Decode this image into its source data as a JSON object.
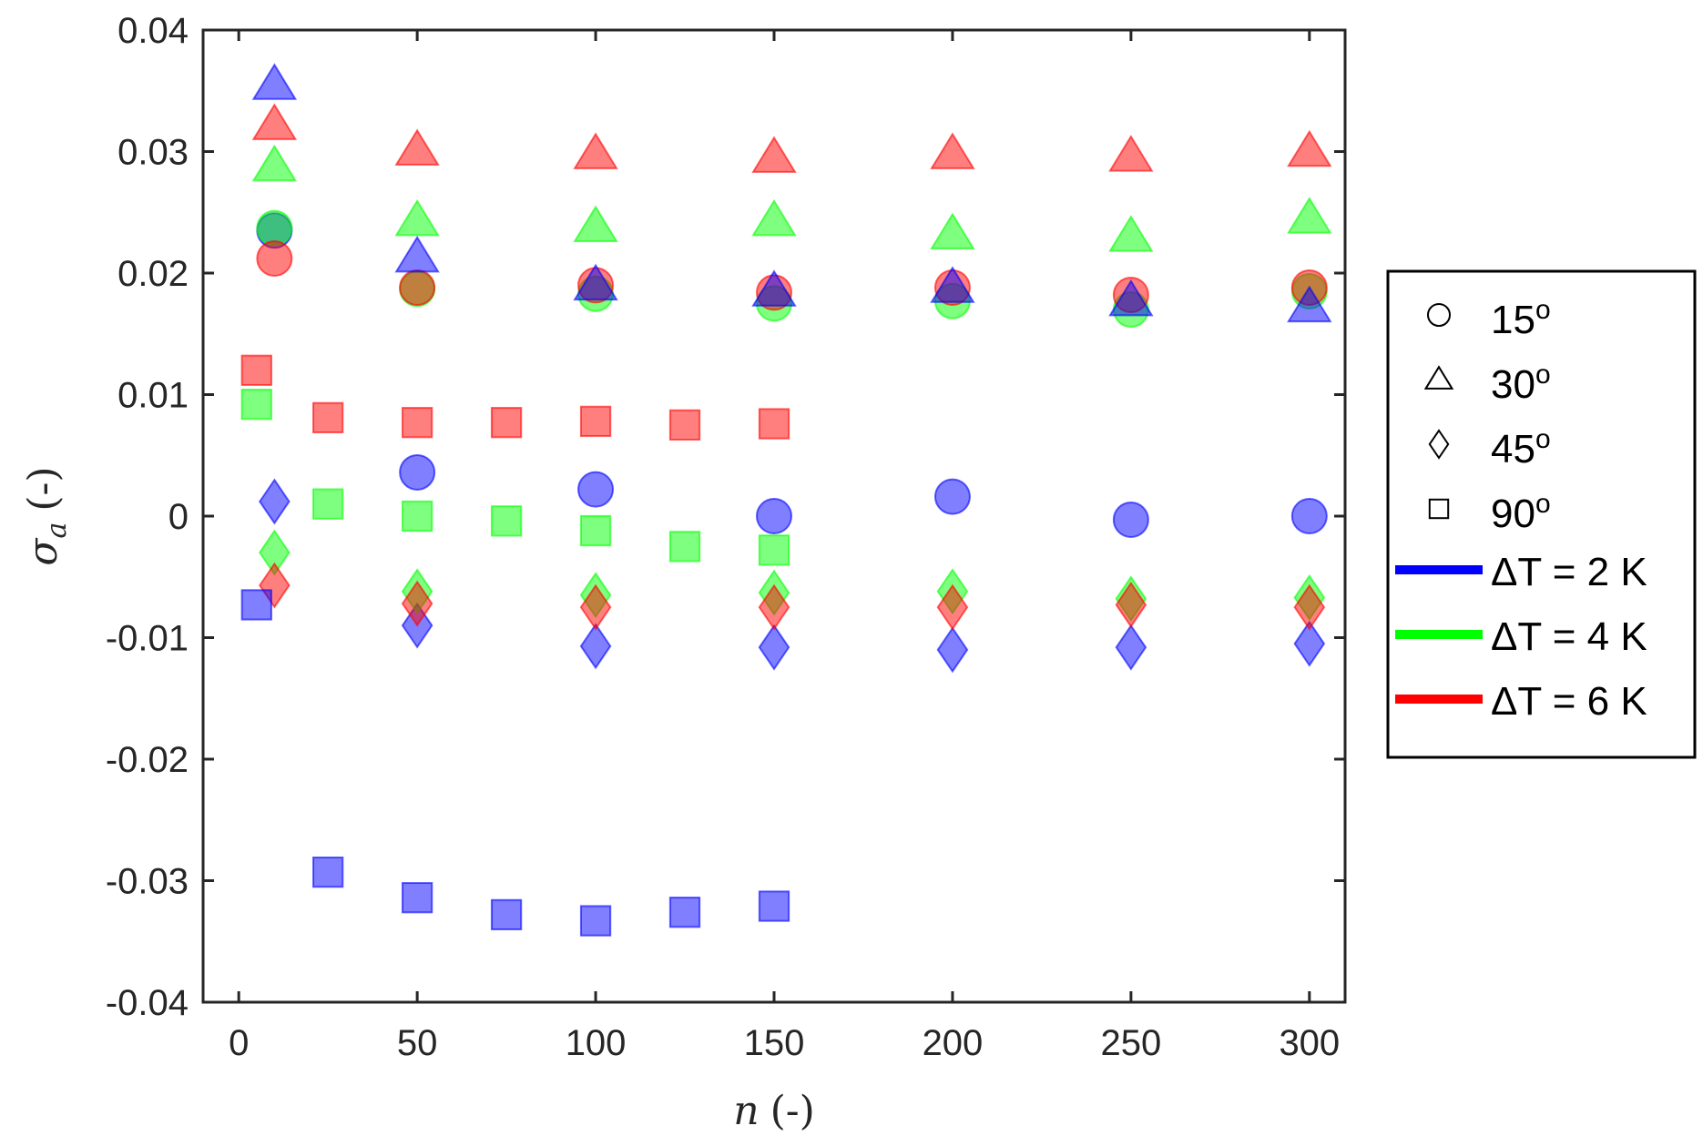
{
  "chart_data": {
    "type": "scatter",
    "xlabel": "n (-)",
    "xlabel_var": "n",
    "xlabel_unit": "(-)",
    "ylabel": "σa (-)",
    "ylabel_var": "σ",
    "ylabel_sub": "a",
    "ylabel_unit": "(-)",
    "xlim": [
      -10,
      310
    ],
    "ylim": [
      -0.04,
      0.04
    ],
    "xticks": [
      0,
      50,
      100,
      150,
      200,
      250,
      300
    ],
    "xtick_labels": [
      "0",
      "50",
      "100",
      "150",
      "200",
      "250",
      "300"
    ],
    "yticks": [
      -0.04,
      -0.03,
      -0.02,
      -0.01,
      0,
      0.01,
      0.02,
      0.03,
      0.04
    ],
    "ytick_labels": [
      "-0.04",
      "-0.03",
      "-0.02",
      "-0.01",
      "0",
      "0.01",
      "0.02",
      "0.03",
      "0.04"
    ],
    "grid": false,
    "legend_position": "outside-right",
    "legend": {
      "markers": [
        {
          "shape": "circle",
          "label": "15",
          "sup": "o"
        },
        {
          "shape": "triangle",
          "label": "30",
          "sup": "o"
        },
        {
          "shape": "diamond",
          "label": "45",
          "sup": "o"
        },
        {
          "shape": "square",
          "label": "90",
          "sup": "o"
        }
      ],
      "lines": [
        {
          "label": "ΔT = 2 K",
          "color": "#0000ff"
        },
        {
          "label": "ΔT = 4 K",
          "color": "#00ff00"
        },
        {
          "label": "ΔT = 6 K",
          "color": "#ff0000"
        }
      ]
    },
    "series": [
      {
        "color": "#0000ff",
        "shape": "circle",
        "points": [
          [
            10,
            0.0235
          ],
          [
            50,
            0.0036
          ],
          [
            100,
            0.0022
          ],
          [
            150,
            0.0
          ],
          [
            200,
            0.0016
          ],
          [
            250,
            -0.0003
          ],
          [
            300,
            0.0
          ]
        ]
      },
      {
        "color": "#00ff00",
        "shape": "circle",
        "points": [
          [
            10,
            0.0237
          ],
          [
            50,
            0.0187
          ],
          [
            100,
            0.0183
          ],
          [
            150,
            0.0175
          ],
          [
            200,
            0.0177
          ],
          [
            250,
            0.017
          ],
          [
            300,
            0.0185
          ]
        ]
      },
      {
        "color": "#ff0000",
        "shape": "circle",
        "points": [
          [
            10,
            0.0212
          ],
          [
            50,
            0.0188
          ],
          [
            100,
            0.019
          ],
          [
            150,
            0.0184
          ],
          [
            200,
            0.0188
          ],
          [
            250,
            0.0182
          ],
          [
            300,
            0.0188
          ]
        ]
      },
      {
        "color": "#0000ff",
        "shape": "triangle",
        "points": [
          [
            10,
            0.0355
          ],
          [
            50,
            0.0213
          ],
          [
            100,
            0.019
          ],
          [
            150,
            0.0185
          ],
          [
            200,
            0.0188
          ],
          [
            250,
            0.0177
          ],
          [
            300,
            0.0172
          ]
        ]
      },
      {
        "color": "#00ff00",
        "shape": "triangle",
        "points": [
          [
            10,
            0.0288
          ],
          [
            50,
            0.0243
          ],
          [
            100,
            0.0238
          ],
          [
            150,
            0.0243
          ],
          [
            200,
            0.0232
          ],
          [
            250,
            0.023
          ],
          [
            300,
            0.0245
          ]
        ]
      },
      {
        "color": "#ff0000",
        "shape": "triangle",
        "points": [
          [
            10,
            0.0322
          ],
          [
            50,
            0.0301
          ],
          [
            100,
            0.0298
          ],
          [
            150,
            0.0295
          ],
          [
            200,
            0.0298
          ],
          [
            250,
            0.0296
          ],
          [
            300,
            0.03
          ]
        ]
      },
      {
        "color": "#0000ff",
        "shape": "diamond",
        "points": [
          [
            10,
            0.0012
          ],
          [
            50,
            -0.009
          ],
          [
            100,
            -0.0107
          ],
          [
            150,
            -0.0108
          ],
          [
            200,
            -0.011
          ],
          [
            250,
            -0.0108
          ],
          [
            300,
            -0.0105
          ]
        ]
      },
      {
        "color": "#00ff00",
        "shape": "diamond",
        "points": [
          [
            10,
            -0.003
          ],
          [
            50,
            -0.0062
          ],
          [
            100,
            -0.0065
          ],
          [
            150,
            -0.0063
          ],
          [
            200,
            -0.0062
          ],
          [
            250,
            -0.0068
          ],
          [
            300,
            -0.0067
          ]
        ]
      },
      {
        "color": "#ff0000",
        "shape": "diamond",
        "points": [
          [
            10,
            -0.0057
          ],
          [
            50,
            -0.0072
          ],
          [
            100,
            -0.0075
          ],
          [
            150,
            -0.0075
          ],
          [
            200,
            -0.0075
          ],
          [
            250,
            -0.0073
          ],
          [
            300,
            -0.0075
          ]
        ]
      },
      {
        "color": "#0000ff",
        "shape": "square",
        "points": [
          [
            5,
            -0.0073
          ],
          [
            25,
            -0.0293
          ],
          [
            50,
            -0.0314
          ],
          [
            75,
            -0.0328
          ],
          [
            100,
            -0.0333
          ],
          [
            125,
            -0.0326
          ],
          [
            150,
            -0.0321
          ]
        ]
      },
      {
        "color": "#00ff00",
        "shape": "square",
        "points": [
          [
            5,
            0.0092
          ],
          [
            25,
            0.001
          ],
          [
            50,
            0.0
          ],
          [
            75,
            -0.0004
          ],
          [
            100,
            -0.0012
          ],
          [
            125,
            -0.0025
          ],
          [
            150,
            -0.0028
          ]
        ]
      },
      {
        "color": "#ff0000",
        "shape": "square",
        "points": [
          [
            5,
            0.012
          ],
          [
            25,
            0.0081
          ],
          [
            50,
            0.0077
          ],
          [
            75,
            0.0077
          ],
          [
            100,
            0.0078
          ],
          [
            125,
            0.0075
          ],
          [
            150,
            0.0076
          ]
        ]
      }
    ]
  }
}
